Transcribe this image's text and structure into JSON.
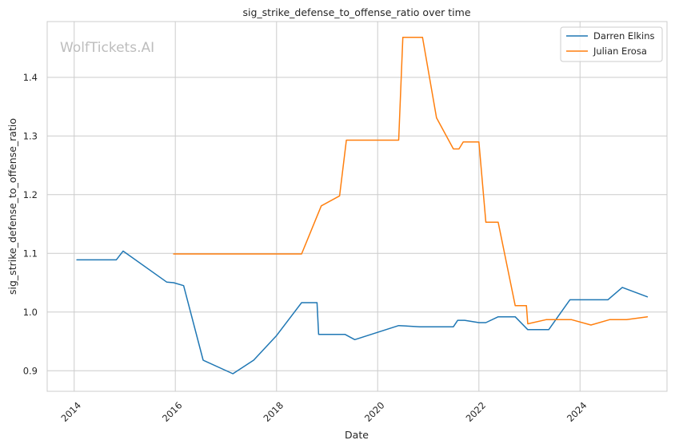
{
  "watermark": "WolfTickets.AI",
  "chart_data": {
    "type": "line",
    "title": "sig_strike_defense_to_offense_ratio over time",
    "xlabel": "Date",
    "ylabel": "sig_strike_defense_to_offense_ratio",
    "x_range": [
      "2013-06-20",
      "2025-09-20"
    ],
    "ylim": [
      0.865,
      1.495
    ],
    "x_ticks": [
      "2014",
      "2016",
      "2018",
      "2020",
      "2022",
      "2024"
    ],
    "y_ticks": [
      0.9,
      1.0,
      1.1,
      1.2,
      1.3,
      1.4
    ],
    "grid": true,
    "legend_position": "top-right",
    "series": [
      {
        "name": "Darren Elkins",
        "color": "#1f77b4",
        "points": [
          [
            "2014-01-20",
            1.089
          ],
          [
            "2014-11-01",
            1.089
          ],
          [
            "2014-12-20",
            1.104
          ],
          [
            "2015-11-01",
            1.051
          ],
          [
            "2015-12-20",
            1.05
          ],
          [
            "2016-03-01",
            1.045
          ],
          [
            "2016-07-20",
            0.918
          ],
          [
            "2017-02-20",
            0.895
          ],
          [
            "2017-07-20",
            0.918
          ],
          [
            "2018-01-01",
            0.96
          ],
          [
            "2018-07-01",
            1.016
          ],
          [
            "2018-10-20",
            1.016
          ],
          [
            "2018-11-01",
            0.962
          ],
          [
            "2019-05-10",
            0.962
          ],
          [
            "2019-07-20",
            0.953
          ],
          [
            "2020-06-01",
            0.977
          ],
          [
            "2020-11-01",
            0.975
          ],
          [
            "2021-07-01",
            0.975
          ],
          [
            "2021-08-01",
            0.986
          ],
          [
            "2021-09-20",
            0.986
          ],
          [
            "2022-01-01",
            0.982
          ],
          [
            "2022-02-20",
            0.982
          ],
          [
            "2022-05-20",
            0.992
          ],
          [
            "2022-09-20",
            0.992
          ],
          [
            "2022-12-20",
            0.97
          ],
          [
            "2023-05-20",
            0.97
          ],
          [
            "2023-10-20",
            1.021
          ],
          [
            "2024-07-20",
            1.021
          ],
          [
            "2024-11-01",
            1.042
          ],
          [
            "2025-05-01",
            1.026
          ]
        ]
      },
      {
        "name": "Julian Erosa",
        "color": "#ff7f0e",
        "points": [
          [
            "2015-12-20",
            1.099
          ],
          [
            "2018-07-01",
            1.099
          ],
          [
            "2018-11-20",
            1.181
          ],
          [
            "2019-04-01",
            1.198
          ],
          [
            "2019-05-20",
            1.293
          ],
          [
            "2020-06-01",
            1.293
          ],
          [
            "2020-07-01",
            1.468
          ],
          [
            "2020-11-20",
            1.468
          ],
          [
            "2021-03-01",
            1.331
          ],
          [
            "2021-07-01",
            1.278
          ],
          [
            "2021-08-10",
            1.278
          ],
          [
            "2021-09-10",
            1.29
          ],
          [
            "2022-01-01",
            1.29
          ],
          [
            "2022-02-20",
            1.153
          ],
          [
            "2022-05-20",
            1.153
          ],
          [
            "2022-09-20",
            1.011
          ],
          [
            "2022-12-10",
            1.011
          ],
          [
            "2022-12-20",
            0.98
          ],
          [
            "2023-05-01",
            0.987
          ],
          [
            "2023-11-01",
            0.987
          ],
          [
            "2024-03-20",
            0.978
          ],
          [
            "2024-08-01",
            0.987
          ],
          [
            "2024-12-01",
            0.987
          ],
          [
            "2025-05-01",
            0.992
          ]
        ]
      }
    ]
  }
}
